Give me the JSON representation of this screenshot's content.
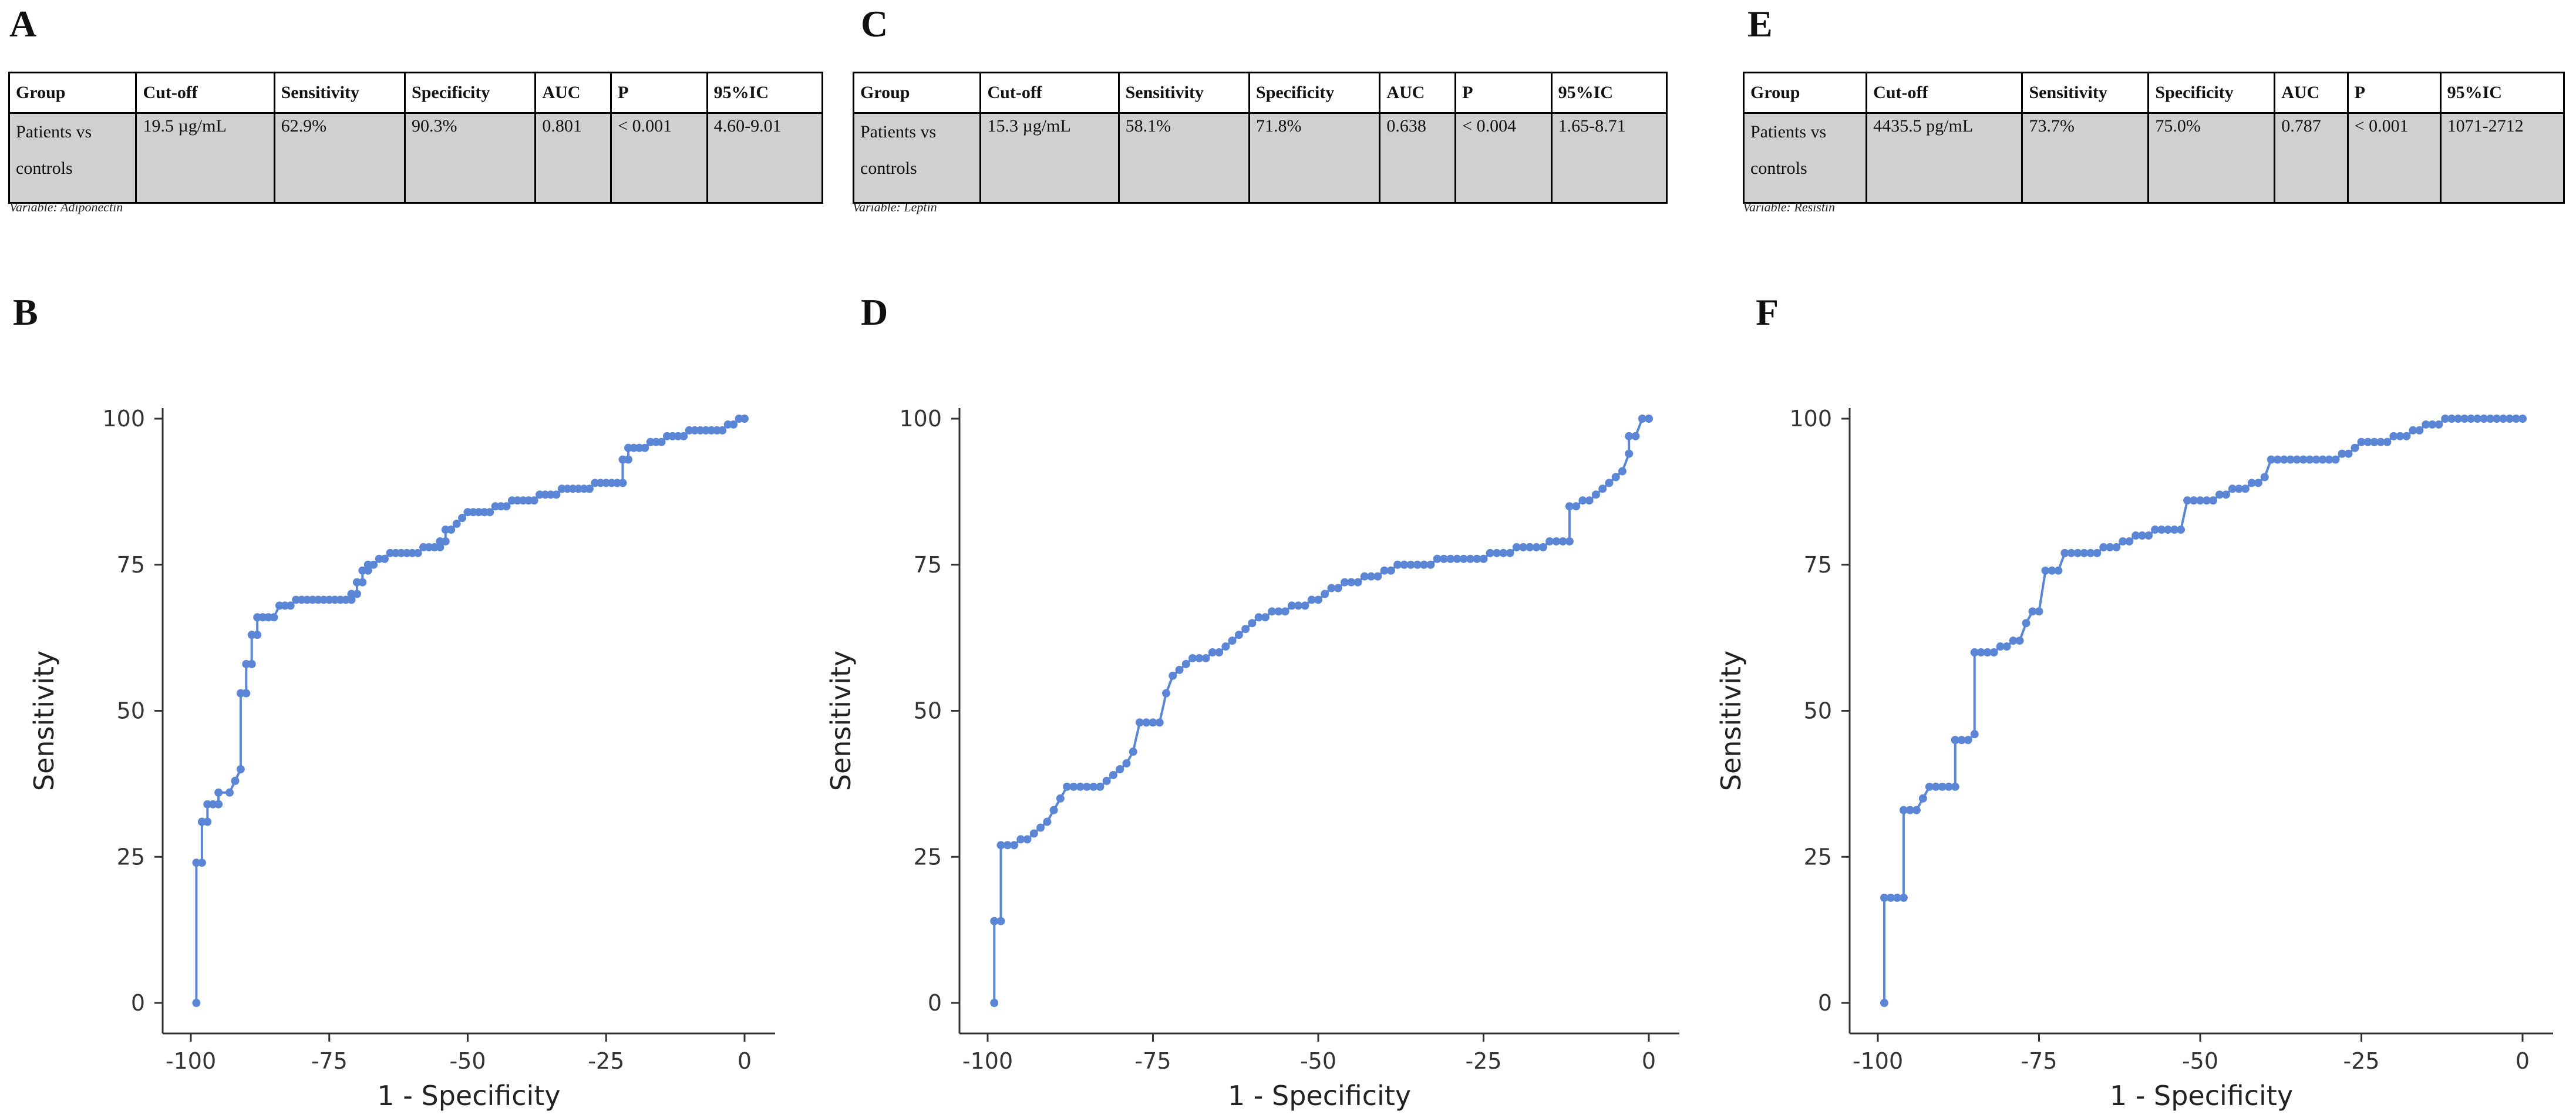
{
  "panels": [
    {
      "letter": "A"
    },
    {
      "letter": "B"
    },
    {
      "letter": "C"
    },
    {
      "letter": "D"
    },
    {
      "letter": "E"
    },
    {
      "letter": "F"
    }
  ],
  "table_headers": [
    "Group",
    "Cut-off",
    "Sensitivity",
    "Specificity",
    "AUC",
    "P",
    "95%IC"
  ],
  "tables": [
    {
      "group_line1": "Patients vs",
      "group_line2": "controls",
      "cutoff": "19.5 µg/mL",
      "sensitivity": "62.9%",
      "specificity": "90.3%",
      "auc": "0.801",
      "p": "< 0.001",
      "ci": "4.60-9.01",
      "caption": "Variable: Adiponectin"
    },
    {
      "group_line1": "Patients vs",
      "group_line2": "controls",
      "cutoff": "15.3 µg/mL",
      "sensitivity": "58.1%",
      "specificity": "71.8%",
      "auc": "0.638",
      "p": "< 0.004",
      "ci": "1.65-8.71",
      "caption": "Variable: Leptin"
    },
    {
      "group_line1": "Patients vs",
      "group_line2": "controls",
      "cutoff": "4435.5 pg/mL",
      "sensitivity": "73.7%",
      "specificity": "75.0%",
      "auc": "0.787",
      "p": "< 0.001",
      "ci": "1071-2712",
      "caption": "Variable: Resistin"
    }
  ],
  "chart_data": [
    {
      "type": "line",
      "panel": "B",
      "xlabel": "1 - Specificity",
      "ylabel": "Sensitivity",
      "xlim": [
        -100,
        0
      ],
      "ylim": [
        0,
        100
      ],
      "xticks": [
        -100,
        -75,
        -50,
        -25,
        0
      ],
      "yticks": [
        0,
        25,
        50,
        75,
        100
      ],
      "grid": false,
      "line_color": "#5b86d6",
      "series": [
        {
          "x": [
            -99,
            -99,
            -98,
            -98,
            -97,
            -97,
            -96,
            -95,
            -95,
            -93,
            -92,
            -92,
            -91,
            -91,
            -90,
            -90,
            -89,
            -89,
            -88,
            -88,
            -87,
            -86,
            -85,
            -84,
            -83,
            -82,
            -81,
            -80,
            -79,
            -78,
            -77,
            -76,
            -75,
            -74,
            -73,
            -72,
            -71,
            -71,
            -70,
            -70,
            -69,
            -69,
            -68,
            -68,
            -67,
            -66,
            -65,
            -64,
            -63,
            -62,
            -61,
            -60,
            -59,
            -58,
            -57,
            -56,
            -55,
            -55,
            -54,
            -54,
            -53,
            -52,
            -51,
            -50,
            -49,
            -48,
            -47,
            -46,
            -45,
            -44,
            -43,
            -42,
            -41,
            -40,
            -39,
            -38,
            -37,
            -36,
            -35,
            -34,
            -33,
            -32,
            -31,
            -30,
            -29,
            -28,
            -27,
            -26,
            -25,
            -24,
            -23,
            -22,
            -22,
            -21,
            -21,
            -20,
            -19,
            -18,
            -17,
            -16,
            -15,
            -14,
            -13,
            -12,
            -11,
            -10,
            -9,
            -8,
            -7,
            -6,
            -5,
            -4,
            -3,
            -2,
            -1,
            0
          ],
          "y": [
            0,
            24,
            24,
            31,
            31,
            34,
            34,
            34,
            36,
            36,
            38,
            38,
            40,
            53,
            53,
            58,
            58,
            63,
            63,
            66,
            66,
            66,
            66,
            68,
            68,
            68,
            69,
            69,
            69,
            69,
            69,
            69,
            69,
            69,
            69,
            69,
            69,
            70,
            70,
            72,
            72,
            74,
            74,
            75,
            75,
            76,
            76,
            77,
            77,
            77,
            77,
            77,
            77,
            78,
            78,
            78,
            78,
            79,
            79,
            81,
            81,
            82,
            83,
            84,
            84,
            84,
            84,
            84,
            85,
            85,
            85,
            86,
            86,
            86,
            86,
            86,
            87,
            87,
            87,
            87,
            88,
            88,
            88,
            88,
            88,
            88,
            89,
            89,
            89,
            89,
            89,
            89,
            93,
            93,
            95,
            95,
            95,
            95,
            96,
            96,
            96,
            97,
            97,
            97,
            97,
            98,
            98,
            98,
            98,
            98,
            98,
            98,
            99,
            99,
            100,
            100
          ]
        }
      ]
    },
    {
      "type": "line",
      "panel": "D",
      "xlabel": "1 - Specificity",
      "ylabel": "Sensitivity",
      "xlim": [
        -100,
        0
      ],
      "ylim": [
        0,
        100
      ],
      "xticks": [
        -100,
        -75,
        -50,
        -25,
        0
      ],
      "yticks": [
        0,
        25,
        50,
        75,
        100
      ],
      "grid": false,
      "line_color": "#5b86d6",
      "series": [
        {
          "x": [
            -99,
            -99,
            -98,
            -98,
            -97,
            -96,
            -95,
            -94,
            -93,
            -92,
            -91,
            -90,
            -89,
            -88,
            -87,
            -86,
            -85,
            -84,
            -83,
            -82,
            -81,
            -80,
            -79,
            -78,
            -77,
            -76,
            -75,
            -74,
            -73,
            -72,
            -71,
            -70,
            -69,
            -68,
            -67,
            -66,
            -65,
            -64,
            -63,
            -62,
            -61,
            -60,
            -59,
            -58,
            -57,
            -56,
            -55,
            -54,
            -53,
            -52,
            -51,
            -50,
            -49,
            -48,
            -47,
            -46,
            -45,
            -44,
            -43,
            -42,
            -41,
            -40,
            -39,
            -38,
            -37,
            -36,
            -35,
            -34,
            -33,
            -32,
            -31,
            -30,
            -29,
            -28,
            -27,
            -26,
            -25,
            -24,
            -23,
            -22,
            -21,
            -20,
            -19,
            -18,
            -17,
            -16,
            -15,
            -14,
            -13,
            -12,
            -12,
            -11,
            -10,
            -9,
            -8,
            -7,
            -6,
            -5,
            -4,
            -3,
            -3,
            -2,
            -1,
            0
          ],
          "y": [
            0,
            14,
            14,
            27,
            27,
            27,
            28,
            28,
            29,
            30,
            31,
            33,
            35,
            37,
            37,
            37,
            37,
            37,
            37,
            38,
            39,
            40,
            41,
            43,
            48,
            48,
            48,
            48,
            53,
            56,
            57,
            58,
            59,
            59,
            59,
            60,
            60,
            61,
            62,
            63,
            64,
            65,
            66,
            66,
            67,
            67,
            67,
            68,
            68,
            68,
            69,
            69,
            70,
            71,
            71,
            72,
            72,
            72,
            73,
            73,
            73,
            74,
            74,
            75,
            75,
            75,
            75,
            75,
            75,
            76,
            76,
            76,
            76,
            76,
            76,
            76,
            76,
            77,
            77,
            77,
            77,
            78,
            78,
            78,
            78,
            78,
            79,
            79,
            79,
            79,
            85,
            85,
            86,
            86,
            87,
            88,
            89,
            90,
            91,
            94,
            97,
            97,
            100,
            100
          ]
        }
      ]
    },
    {
      "type": "line",
      "panel": "F",
      "xlabel": "1 - Specificity",
      "ylabel": "Sensitivity",
      "xlim": [
        -100,
        0
      ],
      "ylim": [
        0,
        100
      ],
      "xticks": [
        -100,
        -75,
        -50,
        -25,
        0
      ],
      "yticks": [
        0,
        25,
        50,
        75,
        100
      ],
      "grid": false,
      "line_color": "#5b86d6",
      "series": [
        {
          "x": [
            -99,
            -99,
            -98,
            -97,
            -96,
            -96,
            -95,
            -94,
            -93,
            -92,
            -91,
            -90,
            -89,
            -88,
            -88,
            -87,
            -86,
            -85,
            -85,
            -84,
            -83,
            -82,
            -81,
            -80,
            -79,
            -78,
            -77,
            -76,
            -75,
            -74,
            -73,
            -72,
            -71,
            -70,
            -69,
            -68,
            -67,
            -66,
            -65,
            -64,
            -63,
            -62,
            -61,
            -60,
            -59,
            -58,
            -57,
            -56,
            -55,
            -54,
            -53,
            -52,
            -51,
            -50,
            -49,
            -48,
            -47,
            -46,
            -45,
            -44,
            -43,
            -42,
            -41,
            -40,
            -39,
            -38,
            -37,
            -36,
            -35,
            -34,
            -33,
            -32,
            -31,
            -30,
            -29,
            -28,
            -27,
            -26,
            -25,
            -24,
            -23,
            -22,
            -21,
            -20,
            -19,
            -18,
            -17,
            -16,
            -15,
            -14,
            -13,
            -12,
            -11,
            -10,
            -9,
            -8,
            -7,
            -6,
            -5,
            -4,
            -3,
            -2,
            -1,
            0
          ],
          "y": [
            0,
            18,
            18,
            18,
            18,
            33,
            33,
            33,
            35,
            37,
            37,
            37,
            37,
            37,
            45,
            45,
            45,
            46,
            60,
            60,
            60,
            60,
            61,
            61,
            62,
            62,
            65,
            67,
            67,
            74,
            74,
            74,
            77,
            77,
            77,
            77,
            77,
            77,
            78,
            78,
            78,
            79,
            79,
            80,
            80,
            80,
            81,
            81,
            81,
            81,
            81,
            86,
            86,
            86,
            86,
            86,
            87,
            87,
            88,
            88,
            88,
            89,
            89,
            90,
            93,
            93,
            93,
            93,
            93,
            93,
            93,
            93,
            93,
            93,
            93,
            94,
            94,
            95,
            96,
            96,
            96,
            96,
            96,
            97,
            97,
            97,
            98,
            98,
            99,
            99,
            99,
            100,
            100,
            100,
            100,
            100,
            100,
            100,
            100,
            100,
            100,
            100,
            100,
            100
          ]
        }
      ]
    }
  ]
}
